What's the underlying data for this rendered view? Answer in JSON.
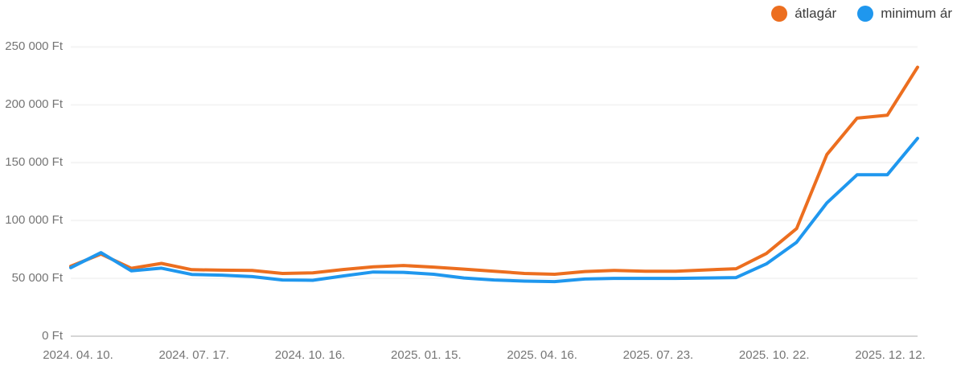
{
  "legend": [
    {
      "label": "átlagár",
      "color": "#ec6e1f"
    },
    {
      "label": "minimum ár",
      "color": "#1f97ee"
    }
  ],
  "chart_data": {
    "type": "line",
    "title": "",
    "xlabel": "",
    "ylabel": "",
    "currency": "Ft",
    "ylim": [
      0,
      250000
    ],
    "grid": true,
    "legend_position": "top-right",
    "y_ticks": [
      {
        "value": 0,
        "label": "0 Ft"
      },
      {
        "value": 50000,
        "label": "50 000 Ft"
      },
      {
        "value": 100000,
        "label": "100 000 Ft"
      },
      {
        "value": 150000,
        "label": "150 000 Ft"
      },
      {
        "value": 200000,
        "label": "200 000 Ft"
      },
      {
        "value": 250000,
        "label": "250 000 Ft"
      }
    ],
    "x_labels": [
      "2024. 04. 10.",
      "2024. 07. 17.",
      "2024. 10. 16.",
      "2025. 01. 15.",
      "2025. 04. 16.",
      "2025. 07. 23.",
      "2025. 10. 22.",
      "2025. 12. 12."
    ],
    "series": [
      {
        "name": "átlagár",
        "color": "#ec6e1f",
        "values": [
          60500,
          71000,
          58700,
          62900,
          57500,
          57100,
          56900,
          54200,
          54800,
          57600,
          60000,
          61100,
          59700,
          58000,
          56200,
          54200,
          53500,
          55900,
          56900,
          56200,
          56200,
          57300,
          58300,
          71500,
          93000,
          157000,
          188500,
          191000,
          232500
        ]
      },
      {
        "name": "minimum ár",
        "color": "#1f97ee",
        "values": [
          59200,
          72200,
          56500,
          58800,
          53400,
          52800,
          51500,
          48600,
          48300,
          52100,
          55500,
          55200,
          53500,
          50300,
          48600,
          47600,
          47200,
          49400,
          50000,
          50000,
          50000,
          50300,
          50700,
          62500,
          81200,
          115200,
          139500,
          139500,
          171000
        ]
      }
    ]
  },
  "style": {
    "gridline_color": "#f4f4f4",
    "axis_line_color": "#d6d6d6",
    "label_color": "#757575",
    "legend_text_color": "#3c3c3c",
    "background": "#ffffff"
  }
}
